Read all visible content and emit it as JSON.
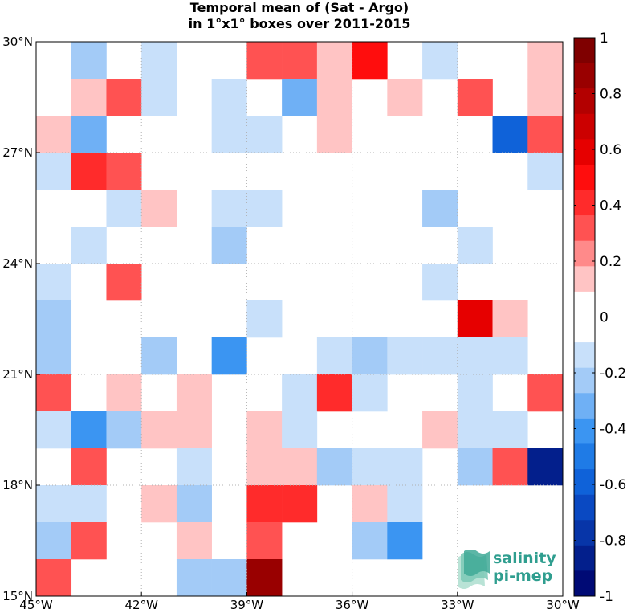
{
  "title": {
    "line1": "Temporal mean of (Sat - Argo)",
    "line2": "in 1°x1° boxes over 2011-2015"
  },
  "logo": {
    "line1": "salinity",
    "line2": "pi-mep"
  },
  "chart_data": {
    "type": "heatmap",
    "x_range": [
      -45,
      -30
    ],
    "y_range": [
      15,
      30
    ],
    "x_tick_values": [
      -45,
      -42,
      -39,
      -36,
      -33,
      -30
    ],
    "x_tick_labels": [
      "45°W",
      "42°W",
      "39°W",
      "36°W",
      "33°W",
      "30°W"
    ],
    "y_tick_values": [
      15,
      18,
      21,
      24,
      27,
      30
    ],
    "y_tick_labels": [
      "15°N",
      "18°N",
      "21°N",
      "24°N",
      "27°N",
      "30°N"
    ],
    "grid": "dotted",
    "cell_size_deg": 1,
    "rows_note": "grid rows listed from the northernmost latitude band (29-30°N) to the southernmost (15-16°N); columns from 45°W to 30°W",
    "grid_values": [
      [
        null,
        -0.2,
        null,
        -0.1,
        null,
        null,
        0.3,
        0.3,
        0.15,
        0.5,
        null,
        -0.1,
        null,
        null,
        0.15
      ],
      [
        null,
        0.15,
        0.3,
        -0.1,
        null,
        -0.1,
        null,
        -0.3,
        0.15,
        null,
        0.15,
        null,
        0.3,
        null,
        0.15
      ],
      [
        0.15,
        -0.35,
        null,
        null,
        null,
        -0.1,
        -0.1,
        null,
        0.15,
        null,
        null,
        null,
        null,
        -0.55,
        0.3
      ],
      [
        -0.1,
        0.4,
        0.3,
        null,
        null,
        null,
        null,
        null,
        null,
        null,
        null,
        null,
        null,
        null,
        -0.1
      ],
      [
        null,
        null,
        -0.1,
        0.15,
        null,
        -0.1,
        -0.1,
        null,
        null,
        null,
        null,
        -0.2,
        null,
        null,
        null
      ],
      [
        null,
        -0.1,
        null,
        null,
        null,
        -0.2,
        null,
        null,
        null,
        null,
        null,
        null,
        -0.1,
        null,
        null
      ],
      [
        -0.1,
        null,
        0.3,
        null,
        null,
        null,
        null,
        null,
        null,
        null,
        null,
        -0.1,
        null,
        null,
        null
      ],
      [
        -0.2,
        null,
        null,
        null,
        null,
        null,
        -0.1,
        null,
        null,
        null,
        null,
        null,
        0.55,
        0.15,
        null
      ],
      [
        -0.2,
        null,
        null,
        -0.2,
        null,
        -0.45,
        null,
        null,
        -0.1,
        -0.2,
        -0.1,
        -0.1,
        -0.1,
        -0.1,
        null
      ],
      [
        0.3,
        null,
        0.15,
        null,
        0.15,
        null,
        null,
        -0.1,
        0.4,
        -0.1,
        null,
        null,
        -0.1,
        null,
        0.3
      ],
      [
        -0.1,
        -0.45,
        -0.25,
        0.15,
        0.15,
        null,
        0.15,
        -0.1,
        null,
        null,
        null,
        0.15,
        -0.1,
        -0.1,
        null
      ],
      [
        null,
        0.3,
        null,
        null,
        -0.1,
        null,
        0.15,
        0.15,
        -0.2,
        -0.1,
        -0.1,
        null,
        -0.2,
        0.3,
        -0.85
      ],
      [
        -0.1,
        -0.1,
        null,
        0.15,
        -0.25,
        null,
        0.4,
        0.45,
        null,
        0.15,
        -0.1,
        null,
        null,
        null,
        null
      ],
      [
        -0.2,
        0.3,
        null,
        null,
        0.15,
        null,
        0.3,
        null,
        null,
        -0.2,
        -0.45,
        null,
        null,
        null,
        null
      ],
      [
        0.3,
        null,
        null,
        null,
        -0.2,
        -0.2,
        0.9,
        null,
        null,
        null,
        null,
        null,
        null,
        null,
        null
      ]
    ],
    "colorbar": {
      "range": [
        -1,
        1
      ],
      "tick_values": [
        1,
        0.8,
        0.6,
        0.4,
        0.2,
        0,
        -0.2,
        -0.4,
        -0.6,
        -0.8,
        -1
      ],
      "tick_labels": [
        "1",
        "0.8",
        "0.6",
        "0.4",
        "0.2",
        "0",
        "-0.2",
        "-0.4",
        "-0.6",
        "-0.8",
        "-1"
      ],
      "level_colors": [
        "#7f0000",
        "#990000",
        "#b30000",
        "#cc0000",
        "#e60000",
        "#ff0d0d",
        "#ff2b2b",
        "#ff5252",
        "#ff8a8a",
        "#ffc4c4",
        "#ffffff",
        "#ffffff",
        "#c8e0fa",
        "#a3cbf7",
        "#6fb0f5",
        "#3b95f2",
        "#1f7be6",
        "#0f62d9",
        "#0a49c2",
        "#0735a8",
        "#031f8c",
        "#000a75"
      ]
    }
  }
}
